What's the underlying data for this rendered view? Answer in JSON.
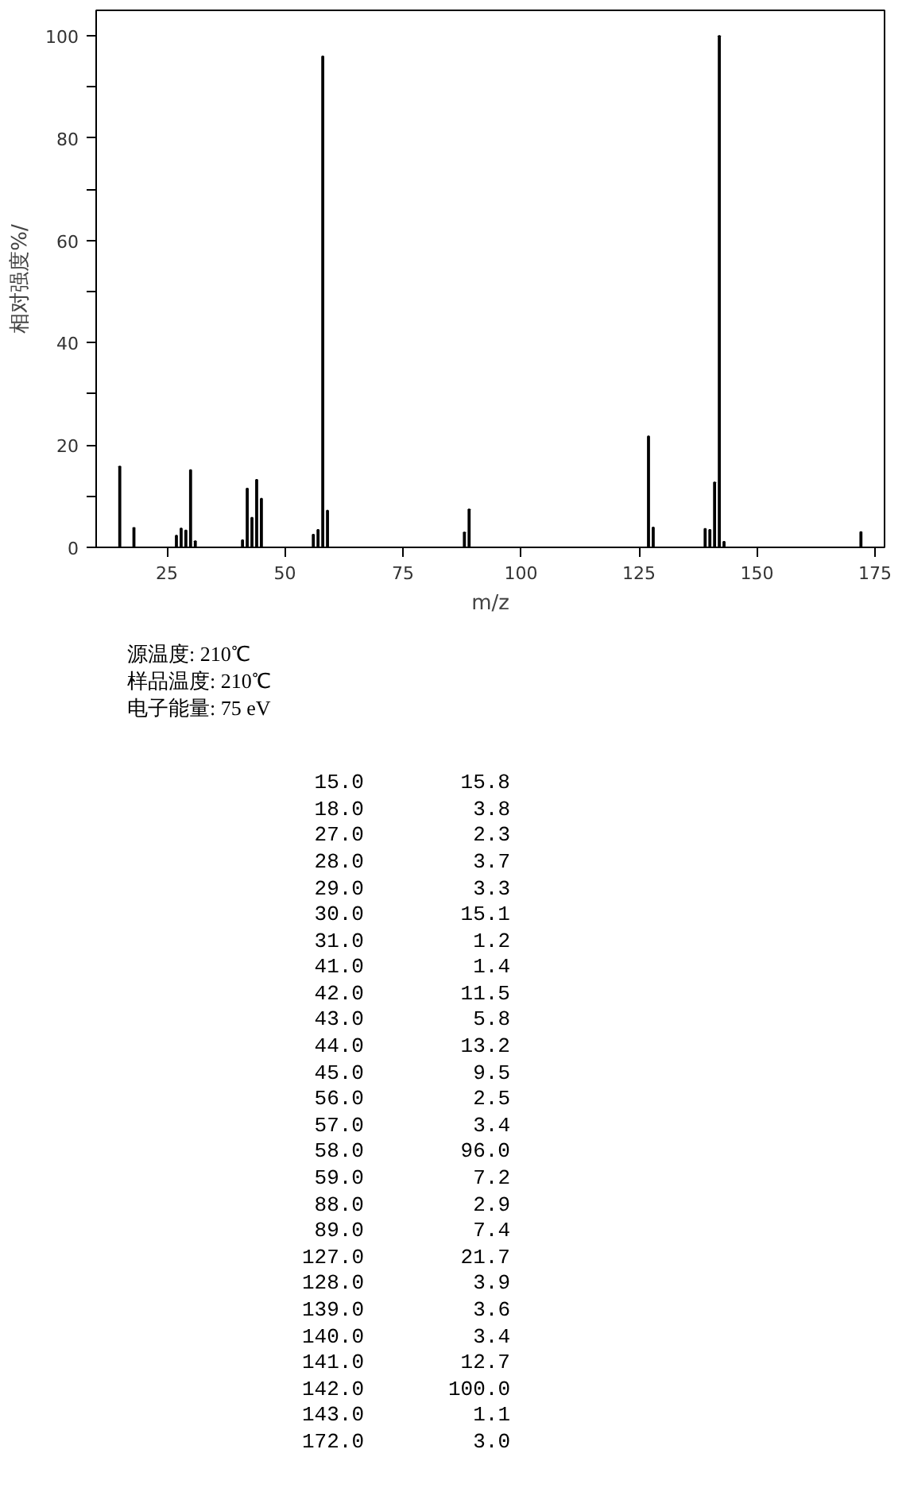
{
  "chart_data": [
    {
      "type": "bar",
      "color": "#000000",
      "xlabel": "m/z",
      "ylabel": "相对强度%/",
      "x": [
        15,
        18,
        27,
        28,
        29,
        30,
        31,
        41,
        42,
        43,
        44,
        45,
        56,
        57,
        58,
        59,
        88,
        89,
        127,
        128,
        139,
        140,
        141,
        142,
        143,
        172
      ],
      "values": [
        15.8,
        3.8,
        2.3,
        3.7,
        3.3,
        15.1,
        1.2,
        1.4,
        11.5,
        5.8,
        13.2,
        9.5,
        2.5,
        3.4,
        96.0,
        7.2,
        2.9,
        7.4,
        21.7,
        3.9,
        3.6,
        3.4,
        12.7,
        100.0,
        1.1,
        3.0
      ],
      "xlim": [
        10,
        177
      ],
      "ylim": [
        0,
        105
      ],
      "xticks": [
        25,
        50,
        75,
        100,
        125,
        150,
        175
      ],
      "yticks": [
        0,
        {
          "value": 10,
          "label": null
        },
        20,
        {
          "value": 30,
          "label": null
        },
        40,
        {
          "value": 50,
          "label": null
        },
        60,
        {
          "value": 70,
          "label": null
        },
        80,
        {
          "value": 90,
          "label": null
        },
        100
      ],
      "grid": false,
      "annotations": [
        "源温度: 210℃",
        "样品温度: 210℃",
        "电子能量: 75 eV"
      ]
    },
    {
      "type": "other",
      "annotations": [
        "15.0",
        "15.8",
        "18.0",
        "3.8",
        "27.0",
        "2.3",
        "28.0",
        "3.7",
        "29.0",
        "3.3",
        "30.0",
        "15.1",
        "31.0",
        "1.2",
        "41.0",
        "1.4",
        "42.0",
        "11.5",
        "43.0",
        "5.8",
        "44.0",
        "13.2",
        "45.0",
        "9.5",
        "56.0",
        "2.5",
        "57.0",
        "3.4",
        "58.0",
        "96.0",
        "59.0",
        "7.2",
        "88.0",
        "2.9",
        "89.0",
        "7.4",
        "127.0",
        "21.7",
        "128.0",
        "3.9",
        "139.0",
        "3.6",
        "140.0",
        "3.4",
        "141.0",
        "12.7",
        "142.0",
        "100.0",
        "143.0",
        "1.1",
        "172.0",
        "3.0"
      ]
    }
  ]
}
